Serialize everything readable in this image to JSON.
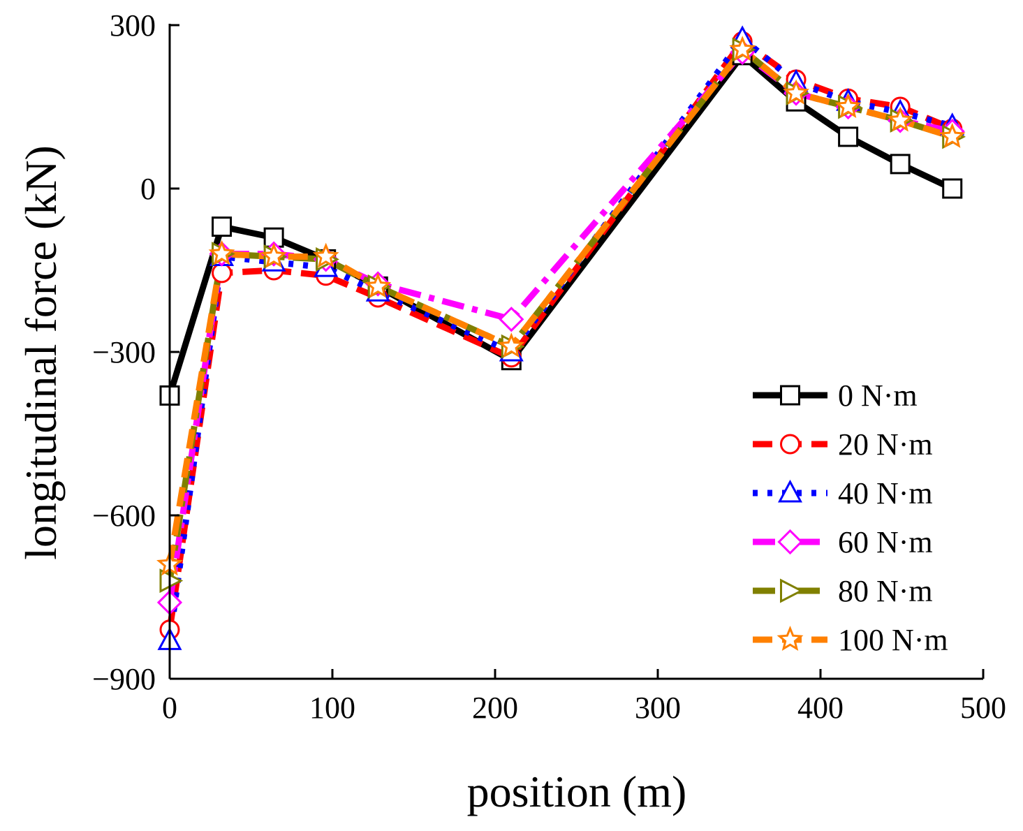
{
  "chart_data": {
    "type": "line",
    "title": "",
    "xlabel": "position (m)",
    "ylabel": "longitudinal force (kN)",
    "xlim": [
      0,
      500
    ],
    "ylim": [
      -900,
      300
    ],
    "xticks": [
      0,
      100,
      200,
      300,
      400,
      500
    ],
    "yticks": [
      300,
      0,
      -300,
      -600,
      -900
    ],
    "ytick_labels": [
      "300",
      "0",
      "−300",
      "−600",
      "−900"
    ],
    "legend_position": "bottom-right",
    "x": [
      0,
      32,
      64,
      96,
      128,
      210,
      352,
      385,
      417,
      449,
      481
    ],
    "series": [
      {
        "name": "0 N·m",
        "color": "#000000",
        "marker": "square",
        "dash": "solid",
        "values": [
          -380,
          -70,
          -90,
          -130,
          -180,
          -315,
          245,
          160,
          95,
          45,
          0
        ]
      },
      {
        "name": "20 N·m",
        "color": "#ff0000",
        "marker": "circle",
        "dash": "dash",
        "values": [
          -810,
          -155,
          -150,
          -160,
          -200,
          -310,
          270,
          200,
          165,
          150,
          110
        ]
      },
      {
        "name": "40 N·m",
        "color": "#0000ff",
        "marker": "triangle-up",
        "dash": "dot",
        "values": [
          -830,
          -125,
          -135,
          -145,
          -190,
          -300,
          275,
          195,
          160,
          140,
          115
        ]
      },
      {
        "name": "60 N·m",
        "color": "#ff00ff",
        "marker": "diamond",
        "dash": "dashdot",
        "values": [
          -760,
          -120,
          -120,
          -130,
          -175,
          -240,
          250,
          175,
          150,
          125,
          105
        ]
      },
      {
        "name": "80 N·m",
        "color": "#808000",
        "marker": "triangle-right",
        "dash": "dashdot",
        "values": [
          -720,
          -120,
          -125,
          -130,
          -180,
          -290,
          255,
          175,
          150,
          125,
          95
        ]
      },
      {
        "name": "100 N·m",
        "color": "#ff8000",
        "marker": "star",
        "dash": "dash",
        "values": [
          -690,
          -120,
          -125,
          -125,
          -180,
          -290,
          255,
          175,
          150,
          125,
          95
        ]
      }
    ]
  }
}
